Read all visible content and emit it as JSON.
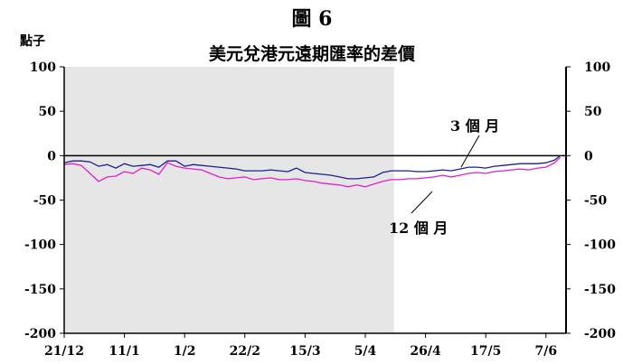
{
  "chart_data": {
    "type": "line",
    "figure_number": "圖 6",
    "title": "美元兌港元遠期匯率的差價",
    "y_unit": "點子",
    "ylim": [
      -200,
      100
    ],
    "y_ticks": [
      100,
      50,
      0,
      -50,
      -100,
      -150,
      -200
    ],
    "x_ticks": [
      "21/12",
      "11/1",
      "1/2",
      "22/2",
      "15/3",
      "5/4",
      "26/4",
      "17/5",
      "7/6"
    ],
    "shaded_region": {
      "from": "21/12",
      "to": "12/4",
      "color": "#e6e6e6"
    },
    "grid": false,
    "series": [
      {
        "name": "3 個 月",
        "color": "#1f1f8f",
        "x": [
          0,
          3,
          6,
          9,
          12,
          15,
          18,
          21,
          24,
          27,
          30,
          33,
          36,
          39,
          42,
          45,
          48,
          51,
          54,
          57,
          60,
          63,
          66,
          69,
          72,
          75,
          78,
          81,
          84,
          87,
          90,
          93,
          96,
          99,
          102,
          105,
          108,
          111,
          114,
          117,
          120,
          123,
          126,
          129,
          132,
          135,
          138,
          141,
          144,
          147,
          150,
          153,
          156,
          159,
          162,
          165,
          168,
          171,
          173
        ],
        "values": [
          -8,
          -6,
          -6,
          -7,
          -12,
          -10,
          -14,
          -9,
          -12,
          -11,
          -10,
          -13,
          -6,
          -6,
          -12,
          -10,
          -11,
          -12,
          -13,
          -14,
          -15,
          -17,
          -17,
          -17,
          -16,
          -17,
          -18,
          -14,
          -19,
          -20,
          -21,
          -22,
          -24,
          -26,
          -26,
          -25,
          -24,
          -19,
          -17,
          -17,
          -17,
          -18,
          -18,
          -17,
          -16,
          -17,
          -15,
          -13,
          -13,
          -14,
          -12,
          -11,
          -10,
          -9,
          -9,
          -9,
          -8,
          -5,
          0
        ]
      },
      {
        "name": "12 個 月",
        "color": "#e020c8",
        "x": [
          0,
          3,
          6,
          9,
          12,
          15,
          18,
          21,
          24,
          27,
          30,
          33,
          36,
          39,
          42,
          45,
          48,
          51,
          54,
          57,
          60,
          63,
          66,
          69,
          72,
          75,
          78,
          81,
          84,
          87,
          90,
          93,
          96,
          99,
          102,
          105,
          108,
          111,
          114,
          117,
          120,
          123,
          126,
          129,
          132,
          135,
          138,
          141,
          144,
          147,
          150,
          153,
          156,
          159,
          162,
          165,
          168,
          171,
          173
        ],
        "values": [
          -10,
          -9,
          -11,
          -20,
          -29,
          -24,
          -23,
          -18,
          -20,
          -14,
          -16,
          -21,
          -8,
          -12,
          -14,
          -15,
          -16,
          -20,
          -24,
          -26,
          -25,
          -24,
          -27,
          -26,
          -25,
          -27,
          -27,
          -26,
          -28,
          -29,
          -31,
          -32,
          -33,
          -35,
          -33,
          -35,
          -32,
          -29,
          -27,
          -27,
          -26,
          -26,
          -25,
          -24,
          -22,
          -24,
          -22,
          -20,
          -19,
          -20,
          -18,
          -17,
          -16,
          -15,
          -16,
          -14,
          -13,
          -8,
          -2
        ]
      }
    ],
    "x_range": [
      0,
      175
    ],
    "x_tick_positions": [
      0,
      21,
      42,
      63,
      84,
      105,
      126,
      147,
      168
    ],
    "shade_end_x": 115
  }
}
